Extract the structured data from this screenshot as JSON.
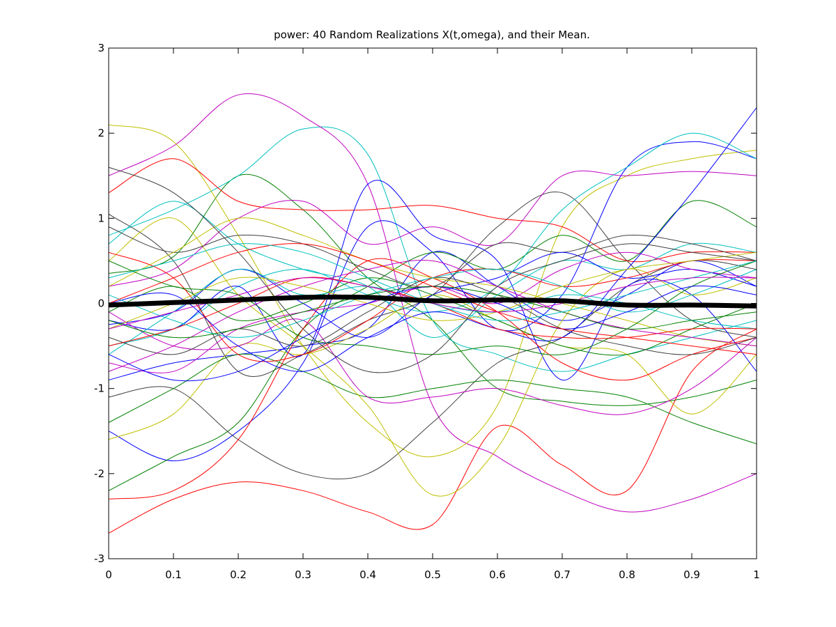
{
  "chart_data": {
    "type": "line",
    "title": "power: 40 Random Realizations X(t,omega), and their Mean.",
    "xlabel": "",
    "ylabel": "",
    "xlim": [
      0,
      1
    ],
    "ylim": [
      -3,
      3
    ],
    "x_ticks": [
      0,
      0.1,
      0.2,
      0.3,
      0.4,
      0.5,
      0.6,
      0.7,
      0.8,
      0.9,
      1
    ],
    "y_ticks": [
      -3,
      -2,
      -1,
      0,
      1,
      2,
      3
    ],
    "x_tick_labels": [
      "0",
      "0.1",
      "0.2",
      "0.3",
      "0.4",
      "0.5",
      "0.6",
      "0.7",
      "0.8",
      "0.9",
      "1"
    ],
    "y_tick_labels": [
      "-3",
      "-2",
      "-1",
      "0",
      "1",
      "2",
      "3"
    ],
    "grid": false,
    "legend": "none",
    "series": [
      {
        "color": "#0000ff",
        "x": [
          0,
          0.1,
          0.2,
          0.3,
          0.4,
          0.5,
          0.6,
          0.7,
          0.8,
          0.9,
          1
        ],
        "y": [
          -0.9,
          -0.7,
          -0.6,
          -0.5,
          -0.3,
          0.6,
          0.2,
          -0.2,
          0.1,
          0.5,
          0.2
        ]
      },
      {
        "color": "#008000",
        "x": [
          0,
          0.1,
          0.2,
          0.3,
          0.4,
          0.5,
          0.6,
          0.7,
          0.8,
          0.9,
          1
        ],
        "y": [
          0.35,
          0.55,
          1.5,
          1.1,
          0.3,
          -0.2,
          -1.0,
          -1.15,
          -1.2,
          -1.1,
          -0.9
        ]
      },
      {
        "color": "#ff0000",
        "x": [
          0,
          0.1,
          0.2,
          0.3,
          0.4,
          0.5,
          0.6,
          0.7,
          0.8,
          0.9,
          1
        ],
        "y": [
          -2.7,
          -2.3,
          -2.1,
          -2.2,
          -2.45,
          -2.6,
          -1.45,
          -1.9,
          -2.2,
          -0.8,
          -0.3
        ]
      },
      {
        "color": "#00bfbf",
        "x": [
          0,
          0.1,
          0.2,
          0.3,
          0.4,
          0.5,
          0.6,
          0.7,
          0.8,
          0.9,
          1
        ],
        "y": [
          0.8,
          1.1,
          1.5,
          2.05,
          1.75,
          -0.2,
          -0.6,
          -0.8,
          -0.6,
          -0.4,
          -0.2
        ]
      },
      {
        "color": "#bf00bf",
        "x": [
          0,
          0.1,
          0.2,
          0.3,
          0.4,
          0.5,
          0.6,
          0.7,
          0.8,
          0.9,
          1
        ],
        "y": [
          1.5,
          1.85,
          2.45,
          2.2,
          1.4,
          -1.2,
          -1.8,
          -2.2,
          -2.45,
          -2.3,
          -2.0
        ]
      },
      {
        "color": "#bfbf00",
        "x": [
          0,
          0.1,
          0.2,
          0.3,
          0.4,
          0.5,
          0.6,
          0.7,
          0.8,
          0.9,
          1
        ],
        "y": [
          2.1,
          1.9,
          0.8,
          -0.5,
          -1.4,
          -1.8,
          -1.2,
          0.9,
          1.5,
          1.7,
          1.8
        ]
      },
      {
        "color": "#404040",
        "x": [
          0,
          0.1,
          0.2,
          0.3,
          0.4,
          0.5,
          0.6,
          0.7,
          0.8,
          0.9,
          1
        ],
        "y": [
          1.05,
          0.5,
          -0.8,
          -0.6,
          -0.2,
          0.1,
          0.9,
          1.3,
          0.5,
          -0.2,
          -0.4
        ]
      },
      {
        "color": "#0000ff",
        "x": [
          0,
          0.1,
          0.2,
          0.3,
          0.4,
          0.5,
          0.6,
          0.7,
          0.8,
          0.9,
          1
        ],
        "y": [
          -1.5,
          -1.85,
          -1.5,
          -0.7,
          0.9,
          0.6,
          -0.3,
          0.1,
          1.6,
          1.9,
          1.7
        ]
      },
      {
        "color": "#008000",
        "x": [
          0,
          0.1,
          0.2,
          0.3,
          0.4,
          0.5,
          0.6,
          0.7,
          0.8,
          0.9,
          1
        ],
        "y": [
          -2.2,
          -1.8,
          -1.4,
          -0.3,
          0.2,
          0.6,
          0.4,
          0.8,
          0.5,
          1.2,
          0.9
        ]
      },
      {
        "color": "#ff0000",
        "x": [
          0,
          0.1,
          0.2,
          0.3,
          0.4,
          0.5,
          0.6,
          0.7,
          0.8,
          0.9,
          1
        ],
        "y": [
          1.3,
          1.7,
          1.2,
          1.1,
          1.1,
          1.15,
          1.0,
          0.9,
          0.5,
          0.6,
          0.6
        ]
      },
      {
        "color": "#00bfbf",
        "x": [
          0,
          0.1,
          0.2,
          0.3,
          0.4,
          0.5,
          0.6,
          0.7,
          0.8,
          0.9,
          1
        ],
        "y": [
          -0.5,
          -0.3,
          0.2,
          0.4,
          0.1,
          -0.1,
          0.2,
          1.1,
          1.6,
          2.0,
          1.7
        ]
      },
      {
        "color": "#bf00bf",
        "x": [
          0,
          0.1,
          0.2,
          0.3,
          0.4,
          0.5,
          0.6,
          0.7,
          0.8,
          0.9,
          1
        ],
        "y": [
          0.2,
          0.4,
          1.0,
          1.2,
          0.7,
          0.9,
          0.7,
          1.5,
          1.5,
          1.55,
          1.5
        ]
      },
      {
        "color": "#bfbf00",
        "x": [
          0,
          0.1,
          0.2,
          0.3,
          0.4,
          0.5,
          0.6,
          0.7,
          0.8,
          0.9,
          1
        ],
        "y": [
          -1.6,
          -1.3,
          -0.5,
          -0.6,
          -0.3,
          0.1,
          -0.2,
          -0.5,
          -0.6,
          -1.3,
          -0.6
        ]
      },
      {
        "color": "#404040",
        "x": [
          0,
          0.1,
          0.2,
          0.3,
          0.4,
          0.5,
          0.6,
          0.7,
          0.8,
          0.9,
          1
        ],
        "y": [
          -1.1,
          -1.0,
          -1.6,
          -2.0,
          -2.0,
          -1.4,
          -0.7,
          -0.4,
          0.2,
          0.5,
          0.4
        ]
      },
      {
        "color": "#0000ff",
        "x": [
          0,
          0.1,
          0.2,
          0.3,
          0.4,
          0.5,
          0.6,
          0.7,
          0.8,
          0.9,
          1
        ],
        "y": [
          -0.2,
          -0.3,
          0.2,
          -0.6,
          1.4,
          0.8,
          0.5,
          -0.9,
          0.2,
          0.1,
          -0.8
        ]
      },
      {
        "color": "#008000",
        "x": [
          0,
          0.1,
          0.2,
          0.3,
          0.4,
          0.5,
          0.6,
          0.7,
          0.8,
          0.9,
          1
        ],
        "y": [
          -1.4,
          -1.0,
          -0.6,
          -0.8,
          -1.1,
          -1.0,
          -0.9,
          -1.0,
          -1.1,
          -1.4,
          -1.65
        ]
      },
      {
        "color": "#ff0000",
        "x": [
          0,
          0.1,
          0.2,
          0.3,
          0.4,
          0.5,
          0.6,
          0.7,
          0.8,
          0.9,
          1
        ],
        "y": [
          -2.3,
          -2.2,
          -1.6,
          -0.3,
          0.5,
          0.3,
          -0.1,
          -0.7,
          -0.9,
          -0.6,
          -0.4
        ]
      },
      {
        "color": "#00bfbf",
        "x": [
          0,
          0.1,
          0.2,
          0.3,
          0.4,
          0.5,
          0.6,
          0.7,
          0.8,
          0.9,
          1
        ],
        "y": [
          0.7,
          1.2,
          0.7,
          0.4,
          0.2,
          -0.4,
          0.1,
          0.5,
          0.4,
          0.7,
          0.6
        ]
      },
      {
        "color": "#bf00bf",
        "x": [
          0,
          0.1,
          0.2,
          0.3,
          0.4,
          0.5,
          0.6,
          0.7,
          0.8,
          0.9,
          1
        ],
        "y": [
          -0.1,
          -0.5,
          -0.5,
          -0.2,
          -1.1,
          -1.1,
          -1.0,
          -1.2,
          -1.3,
          -1.0,
          -0.4
        ]
      },
      {
        "color": "#bfbf00",
        "x": [
          0,
          0.1,
          0.2,
          0.3,
          0.4,
          0.5,
          0.6,
          0.7,
          0.8,
          0.9,
          1
        ],
        "y": [
          0.5,
          1.0,
          0.1,
          -0.5,
          -1.2,
          -2.25,
          -1.7,
          -0.2,
          0.4,
          0.1,
          0.3
        ]
      },
      {
        "color": "#404040",
        "x": [
          0,
          0.1,
          0.2,
          0.3,
          0.4,
          0.5,
          0.6,
          0.7,
          0.8,
          0.9,
          1
        ],
        "y": [
          0.9,
          0.6,
          0.8,
          0.7,
          0.4,
          0.2,
          0.7,
          0.6,
          0.8,
          0.7,
          0.5
        ]
      },
      {
        "color": "#0000ff",
        "x": [
          0,
          0.1,
          0.2,
          0.3,
          0.4,
          0.5,
          0.6,
          0.7,
          0.8,
          0.9,
          1
        ],
        "y": [
          -0.25,
          -0.1,
          0.4,
          0.0,
          -0.4,
          0.1,
          0.3,
          0.6,
          0.3,
          0.4,
          0.2
        ]
      },
      {
        "color": "#008000",
        "x": [
          0,
          0.1,
          0.2,
          0.3,
          0.4,
          0.5,
          0.6,
          0.7,
          0.8,
          0.9,
          1
        ],
        "y": [
          -0.1,
          0.2,
          -0.2,
          0.0,
          0.3,
          0.1,
          -0.2,
          -0.5,
          -0.6,
          -0.3,
          0.0
        ]
      },
      {
        "color": "#ff0000",
        "x": [
          0,
          0.1,
          0.2,
          0.3,
          0.4,
          0.5,
          0.6,
          0.7,
          0.8,
          0.9,
          1
        ],
        "y": [
          0.6,
          0.3,
          -0.6,
          -0.6,
          -0.2,
          0.3,
          0.4,
          0.2,
          0.3,
          0.5,
          0.5
        ]
      },
      {
        "color": "#00bfbf",
        "x": [
          0,
          0.1,
          0.2,
          0.3,
          0.4,
          0.5,
          0.6,
          0.7,
          0.8,
          0.9,
          1
        ],
        "y": [
          -0.6,
          -0.1,
          0.4,
          0.1,
          0.2,
          0.0,
          -0.1,
          0.1,
          0.0,
          -0.2,
          -0.3
        ]
      },
      {
        "color": "#bf00bf",
        "x": [
          0,
          0.1,
          0.2,
          0.3,
          0.4,
          0.5,
          0.6,
          0.7,
          0.8,
          0.9,
          1
        ],
        "y": [
          -0.7,
          -0.8,
          -0.3,
          -0.1,
          0.0,
          0.2,
          0.0,
          0.4,
          0.6,
          0.4,
          0.3
        ]
      },
      {
        "color": "#bfbf00",
        "x": [
          0,
          0.1,
          0.2,
          0.3,
          0.4,
          0.5,
          0.6,
          0.7,
          0.8,
          0.9,
          1
        ],
        "y": [
          0.2,
          0.6,
          1.0,
          0.8,
          0.5,
          0.3,
          0.2,
          0.0,
          -0.2,
          -0.4,
          -0.5
        ]
      },
      {
        "color": "#404040",
        "x": [
          0,
          0.1,
          0.2,
          0.3,
          0.4,
          0.5,
          0.6,
          0.7,
          0.8,
          0.9,
          1
        ],
        "y": [
          -0.4,
          -0.6,
          -0.3,
          -0.5,
          -0.1,
          0.3,
          0.1,
          -0.3,
          -0.5,
          -0.6,
          -0.4
        ]
      },
      {
        "color": "#0000ff",
        "x": [
          0,
          0.1,
          0.2,
          0.3,
          0.4,
          0.5,
          0.6,
          0.7,
          0.8,
          0.9,
          1
        ],
        "y": [
          0.0,
          0.1,
          -0.5,
          -0.8,
          -0.4,
          -0.1,
          -0.3,
          -0.4,
          0.4,
          1.3,
          2.3
        ]
      },
      {
        "color": "#008000",
        "x": [
          0,
          0.1,
          0.2,
          0.3,
          0.4,
          0.5,
          0.6,
          0.7,
          0.8,
          0.9,
          1
        ],
        "y": [
          0.5,
          0.2,
          0.1,
          -0.4,
          -0.5,
          -0.6,
          -0.5,
          -0.6,
          -0.3,
          0.2,
          0.5
        ]
      },
      {
        "color": "#ff0000",
        "x": [
          0,
          0.1,
          0.2,
          0.3,
          0.4,
          0.5,
          0.6,
          0.7,
          0.8,
          0.9,
          1
        ],
        "y": [
          -0.5,
          -0.3,
          0.0,
          0.3,
          0.2,
          0.0,
          -0.3,
          -0.4,
          -0.4,
          -0.3,
          -0.3
        ]
      },
      {
        "color": "#00bfbf",
        "x": [
          0,
          0.1,
          0.2,
          0.3,
          0.4,
          0.5,
          0.6,
          0.7,
          0.8,
          0.9,
          1
        ],
        "y": [
          0.1,
          -0.2,
          -0.4,
          -0.2,
          0.1,
          0.3,
          0.4,
          0.2,
          -0.1,
          0.1,
          0.4
        ]
      },
      {
        "color": "#bf00bf",
        "x": [
          0,
          0.1,
          0.2,
          0.3,
          0.4,
          0.5,
          0.6,
          0.7,
          0.8,
          0.9,
          1
        ],
        "y": [
          -0.8,
          -0.5,
          -0.1,
          0.2,
          0.4,
          0.5,
          0.2,
          -0.1,
          -0.3,
          -0.4,
          -0.5
        ]
      },
      {
        "color": "#bfbf00",
        "x": [
          0,
          0.1,
          0.2,
          0.3,
          0.4,
          0.5,
          0.6,
          0.7,
          0.8,
          0.9,
          1
        ],
        "y": [
          -0.3,
          0.0,
          0.3,
          0.2,
          0.0,
          -0.2,
          -0.1,
          0.2,
          0.4,
          0.5,
          0.6
        ]
      },
      {
        "color": "#404040",
        "x": [
          0,
          0.1,
          0.2,
          0.3,
          0.4,
          0.5,
          0.6,
          0.7,
          0.8,
          0.9,
          1
        ],
        "y": [
          1.6,
          1.3,
          0.6,
          -0.3,
          -0.8,
          -0.6,
          0.2,
          0.5,
          0.7,
          0.6,
          0.5
        ]
      },
      {
        "color": "#0000ff",
        "x": [
          0,
          0.1,
          0.2,
          0.3,
          0.4,
          0.5,
          0.6,
          0.7,
          0.8,
          0.9,
          1
        ],
        "y": [
          -0.6,
          -0.9,
          -0.8,
          -0.4,
          0.0,
          0.2,
          0.0,
          -0.3,
          -0.1,
          0.2,
          0.1
        ]
      },
      {
        "color": "#008000",
        "x": [
          0,
          0.1,
          0.2,
          0.3,
          0.4,
          0.5,
          0.6,
          0.7,
          0.8,
          0.9,
          1
        ],
        "y": [
          -0.2,
          -0.4,
          -0.3,
          -0.1,
          0.1,
          0.2,
          0.1,
          -0.1,
          -0.3,
          -0.2,
          -0.1
        ]
      },
      {
        "color": "#ff0000",
        "x": [
          0,
          0.1,
          0.2,
          0.3,
          0.4,
          0.5,
          0.6,
          0.7,
          0.8,
          0.9,
          1
        ],
        "y": [
          0.0,
          0.3,
          0.6,
          0.7,
          0.5,
          0.2,
          -0.1,
          -0.3,
          -0.4,
          -0.5,
          -0.6
        ]
      },
      {
        "color": "#00bfbf",
        "x": [
          0,
          0.1,
          0.2,
          0.3,
          0.4,
          0.5,
          0.6,
          0.7,
          0.8,
          0.9,
          1
        ],
        "y": [
          0.3,
          0.5,
          0.7,
          0.6,
          0.3,
          0.0,
          -0.2,
          -0.1,
          0.1,
          0.3,
          0.5
        ]
      },
      {
        "color": "#bf00bf",
        "x": [
          0,
          0.1,
          0.2,
          0.3,
          0.4,
          0.5,
          0.6,
          0.7,
          0.8,
          0.9,
          1
        ],
        "y": [
          -0.3,
          -0.1,
          0.1,
          0.3,
          0.2,
          0.0,
          -0.1,
          0.0,
          0.2,
          0.3,
          0.3
        ]
      }
    ],
    "mean": {
      "color": "#000000",
      "x": [
        0,
        0.1,
        0.2,
        0.3,
        0.4,
        0.5,
        0.6,
        0.7,
        0.8,
        0.9,
        1
      ],
      "y": [
        -0.02,
        0.01,
        0.04,
        0.07,
        0.07,
        0.03,
        0.04,
        0.03,
        -0.02,
        -0.02,
        -0.03
      ]
    }
  }
}
